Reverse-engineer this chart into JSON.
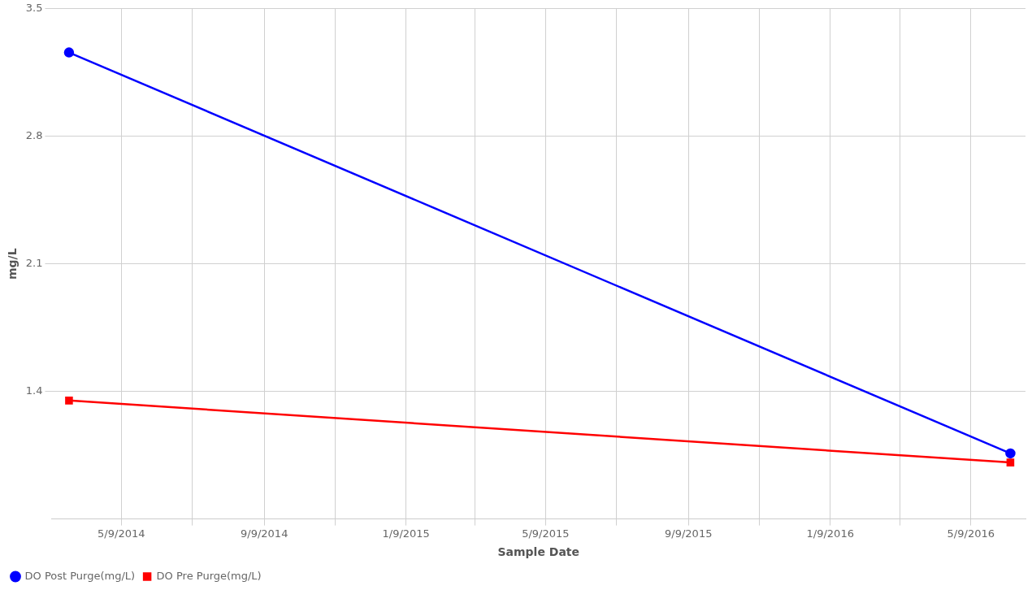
{
  "chart_data": {
    "type": "line",
    "xlabel": "Sample Date",
    "ylabel": "mg/L",
    "series": [
      {
        "name": "DO Post Purge(mg/L)",
        "color": "#0000ff",
        "marker": "circle",
        "x": [
          "2014-03-25",
          "2016-06-12"
        ],
        "values": [
          3.26,
          1.06
        ]
      },
      {
        "name": "DO Pre Purge(mg/L)",
        "color": "#ff0000",
        "marker": "square",
        "x": [
          "2014-03-25",
          "2016-06-12"
        ],
        "values": [
          1.35,
          1.01
        ]
      }
    ],
    "xlim": [
      "2014-03-10",
      "2016-06-25"
    ],
    "xticks": [
      {
        "value": "2014-05-09",
        "label": "5/9/2014"
      },
      {
        "value": "2014-07-09",
        "label": null
      },
      {
        "value": "2014-09-09",
        "label": "9/9/2014"
      },
      {
        "value": "2014-11-09",
        "label": null
      },
      {
        "value": "2015-01-09",
        "label": "1/9/2015"
      },
      {
        "value": "2015-03-09",
        "label": null
      },
      {
        "value": "2015-05-09",
        "label": "5/9/2015"
      },
      {
        "value": "2015-07-09",
        "label": null
      },
      {
        "value": "2015-09-09",
        "label": "9/9/2015"
      },
      {
        "value": "2015-11-09",
        "label": null
      },
      {
        "value": "2016-01-09",
        "label": "1/9/2016"
      },
      {
        "value": "2016-03-09",
        "label": null
      },
      {
        "value": "2016-05-09",
        "label": "5/9/2016"
      }
    ],
    "ylim": [
      0.7,
      3.5
    ],
    "yticks": [
      1.4,
      2.1,
      2.8,
      3.5
    ],
    "grid": true,
    "legend": "bottom left",
    "line_style": "solid"
  }
}
